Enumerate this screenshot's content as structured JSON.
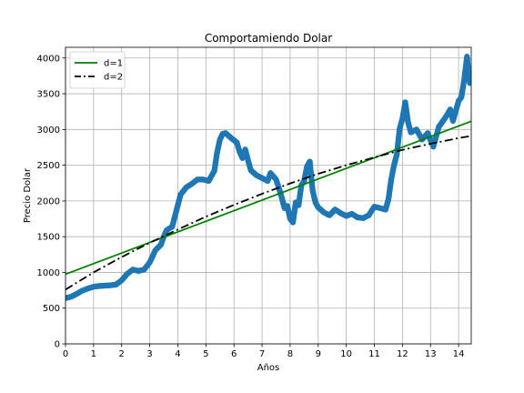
{
  "chart_data": {
    "type": "scatter",
    "title": "Comportamiendo Dolar",
    "xlabel": "Años",
    "ylabel": "Precio Dolar",
    "xlim": [
      0,
      14.45
    ],
    "ylim": [
      0,
      4150
    ],
    "xticks": [
      0,
      1,
      2,
      3,
      4,
      5,
      6,
      7,
      8,
      9,
      10,
      11,
      12,
      13,
      14
    ],
    "yticks": [
      0,
      500,
      1000,
      1500,
      2000,
      2500,
      3000,
      3500,
      4000
    ],
    "grid": true,
    "legend_position": "top-left",
    "series": [
      {
        "kind": "scatter",
        "color": "#1f77b4",
        "points": [
          [
            0.0,
            640
          ],
          [
            0.2,
            660
          ],
          [
            0.4,
            700
          ],
          [
            0.6,
            745
          ],
          [
            0.8,
            775
          ],
          [
            1.0,
            800
          ],
          [
            1.2,
            810
          ],
          [
            1.4,
            815
          ],
          [
            1.6,
            820
          ],
          [
            1.8,
            830
          ],
          [
            2.0,
            890
          ],
          [
            2.2,
            980
          ],
          [
            2.4,
            1040
          ],
          [
            2.6,
            1020
          ],
          [
            2.8,
            1040
          ],
          [
            3.0,
            1140
          ],
          [
            3.2,
            1310
          ],
          [
            3.4,
            1390
          ],
          [
            3.5,
            1500
          ],
          [
            3.6,
            1590
          ],
          [
            3.8,
            1640
          ],
          [
            3.9,
            1790
          ],
          [
            4.0,
            1940
          ],
          [
            4.1,
            2090
          ],
          [
            4.3,
            2190
          ],
          [
            4.5,
            2240
          ],
          [
            4.7,
            2300
          ],
          [
            4.9,
            2300
          ],
          [
            5.1,
            2280
          ],
          [
            5.3,
            2420
          ],
          [
            5.4,
            2680
          ],
          [
            5.5,
            2860
          ],
          [
            5.6,
            2940
          ],
          [
            5.7,
            2950
          ],
          [
            5.9,
            2880
          ],
          [
            6.1,
            2820
          ],
          [
            6.2,
            2690
          ],
          [
            6.3,
            2600
          ],
          [
            6.4,
            2720
          ],
          [
            6.5,
            2570
          ],
          [
            6.6,
            2430
          ],
          [
            6.8,
            2360
          ],
          [
            7.0,
            2320
          ],
          [
            7.2,
            2280
          ],
          [
            7.3,
            2390
          ],
          [
            7.5,
            2300
          ],
          [
            7.6,
            2180
          ],
          [
            7.7,
            2050
          ],
          [
            7.8,
            1900
          ],
          [
            7.9,
            1930
          ],
          [
            8.0,
            1750
          ],
          [
            8.1,
            1700
          ],
          [
            8.2,
            1980
          ],
          [
            8.3,
            1940
          ],
          [
            8.4,
            2220
          ],
          [
            8.5,
            2280
          ],
          [
            8.6,
            2480
          ],
          [
            8.7,
            2550
          ],
          [
            8.8,
            2150
          ],
          [
            8.9,
            1980
          ],
          [
            9.0,
            1910
          ],
          [
            9.2,
            1840
          ],
          [
            9.4,
            1800
          ],
          [
            9.6,
            1880
          ],
          [
            9.8,
            1830
          ],
          [
            10.0,
            1790
          ],
          [
            10.2,
            1820
          ],
          [
            10.4,
            1770
          ],
          [
            10.6,
            1760
          ],
          [
            10.8,
            1800
          ],
          [
            11.0,
            1920
          ],
          [
            11.2,
            1900
          ],
          [
            11.4,
            1880
          ],
          [
            11.5,
            2020
          ],
          [
            11.6,
            2300
          ],
          [
            11.7,
            2500
          ],
          [
            11.8,
            2650
          ],
          [
            11.9,
            3010
          ],
          [
            12.0,
            3150
          ],
          [
            12.1,
            3380
          ],
          [
            12.2,
            3100
          ],
          [
            12.3,
            2960
          ],
          [
            12.5,
            3000
          ],
          [
            12.7,
            2860
          ],
          [
            12.9,
            2950
          ],
          [
            13.0,
            2850
          ],
          [
            13.1,
            2760
          ],
          [
            13.2,
            2900
          ],
          [
            13.3,
            3040
          ],
          [
            13.5,
            3150
          ],
          [
            13.6,
            3210
          ],
          [
            13.7,
            3280
          ],
          [
            13.8,
            3120
          ],
          [
            14.0,
            3400
          ],
          [
            14.1,
            3450
          ],
          [
            14.2,
            3700
          ],
          [
            14.3,
            4020
          ],
          [
            14.35,
            3800
          ],
          [
            14.4,
            3650
          ],
          [
            14.45,
            3700
          ]
        ]
      },
      {
        "name": "d=1",
        "kind": "line",
        "color": "#008000",
        "style": "solid",
        "x": [
          0,
          14.45
        ],
        "y": [
          975,
          3115
        ]
      },
      {
        "name": "d=2",
        "kind": "line",
        "color": "#000000",
        "style": "dashdot",
        "x": [
          0,
          1,
          2,
          3,
          4,
          5,
          6,
          7,
          8,
          9,
          10,
          11,
          12,
          13,
          14,
          14.45
        ],
        "y": [
          760,
          1000,
          1215,
          1415,
          1600,
          1780,
          1945,
          2100,
          2245,
          2380,
          2500,
          2610,
          2715,
          2800,
          2880,
          2910
        ]
      }
    ]
  }
}
